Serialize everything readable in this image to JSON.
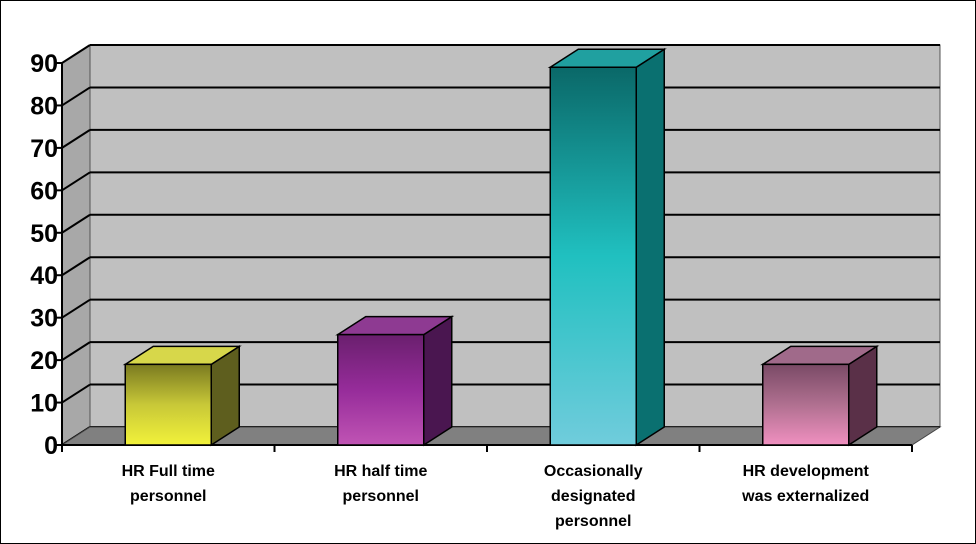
{
  "chart_data": {
    "type": "bar",
    "style": "3d-column",
    "title": "",
    "xlabel": "",
    "ylabel": "",
    "ylim": [
      0,
      90
    ],
    "yticks": [
      0,
      10,
      20,
      30,
      40,
      50,
      60,
      70,
      80,
      90
    ],
    "grid": true,
    "legend": "none",
    "categories": [
      [
        "HR Full time",
        "personnel"
      ],
      [
        "HR half time",
        "personnel"
      ],
      [
        "Occasionally",
        "designated",
        "personnel"
      ],
      [
        "HR development",
        "was externalized"
      ]
    ],
    "values": [
      19,
      26,
      89,
      19
    ],
    "colors": {
      "wall": "#c0c0c0",
      "floor": "#808080",
      "bars": [
        {
          "top": "#7a7a20",
          "mid": "#c8c838",
          "bottom": "#f2f23a",
          "side": "#5e5e1e",
          "cap": "#d7d74a"
        },
        {
          "top": "#6a1f6e",
          "mid": "#962c9a",
          "bottom": "#c054b4",
          "side": "#4a1650",
          "cap": "#8e3a92"
        },
        {
          "top": "#0a6868",
          "mid": "#20c0c0",
          "bottom": "#70ccdc",
          "side": "#0a7070",
          "cap": "#20a0a0"
        },
        {
          "top": "#7a4a66",
          "mid": "#b07090",
          "bottom": "#f090c0",
          "side": "#5a3048",
          "cap": "#a06a8a"
        }
      ]
    }
  }
}
